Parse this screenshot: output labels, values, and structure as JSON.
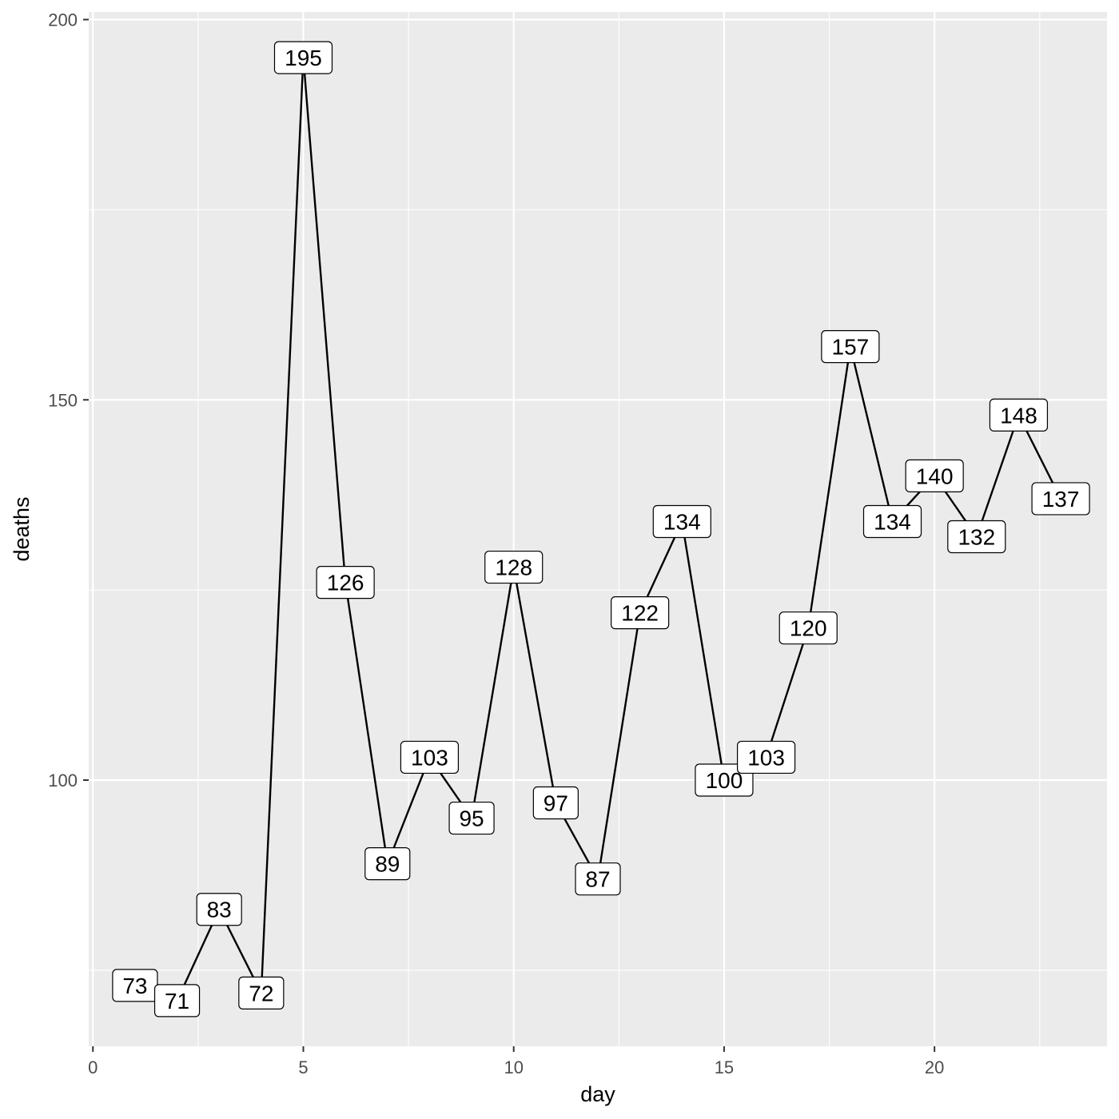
{
  "chart_data": {
    "type": "line",
    "xlabel": "day",
    "ylabel": "deaths",
    "xlim": [
      -0.1,
      24.1
    ],
    "ylim": [
      65,
      201
    ],
    "x_ticks": [
      0,
      5,
      10,
      15,
      20
    ],
    "x_minor_ticks": [
      2.5,
      7.5,
      12.5,
      17.5,
      22.5
    ],
    "y_ticks": [
      100,
      150,
      200
    ],
    "y_minor_ticks": [
      75,
      125,
      175
    ],
    "grid": true,
    "legend": "none",
    "colors": {
      "panel_background": "#ebebeb",
      "grid": "#ffffff",
      "line": "#000000",
      "label_fill": "#ffffff",
      "tick_text": "#4d4d4d",
      "axis_title": "#000000"
    },
    "series": [
      {
        "x": [
          1,
          2,
          3,
          4,
          5,
          6,
          7,
          8,
          9,
          10,
          11,
          12,
          13,
          14,
          15,
          16,
          17,
          18,
          19,
          20,
          21,
          22,
          23
        ],
        "values": [
          73,
          71,
          83,
          72,
          195,
          126,
          89,
          103,
          95,
          128,
          97,
          87,
          122,
          134,
          100,
          103,
          120,
          157,
          134,
          140,
          132,
          148,
          137
        ]
      }
    ]
  }
}
